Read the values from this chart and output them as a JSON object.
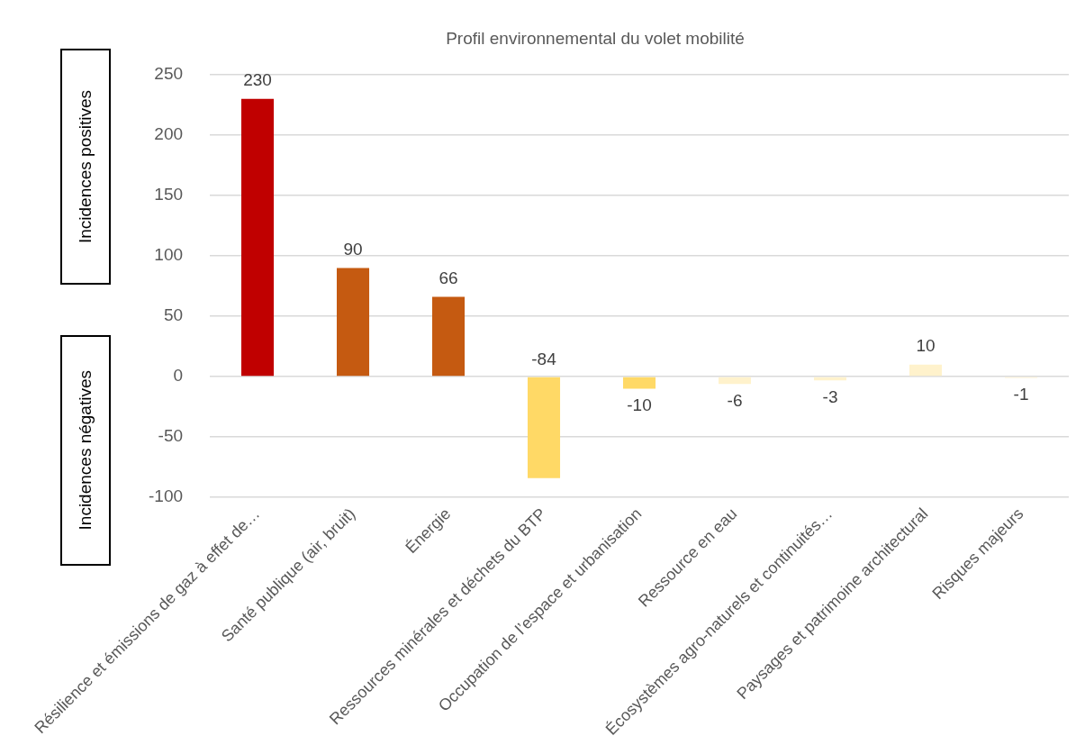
{
  "chart_data": {
    "type": "bar",
    "title": "Profil environnemental du volet mobilité",
    "categories": [
      "Résilience et émissions de gaz à effet de…",
      "Santé publique (air, bruit)",
      "Énergie",
      "Ressources minérales et déchets du BTP",
      "Occupation de l’espace et urbanisation",
      "Ressource en eau",
      "Écosystèmes agro-naturels et continuités…",
      "Paysages et patrimoine architectural",
      "Risques majeurs"
    ],
    "values": [
      230,
      90,
      66,
      -84,
      -10,
      -6,
      -3,
      10,
      -1
    ],
    "colors": [
      "#c00000",
      "#c55a11",
      "#c55a11",
      "#ffd966",
      "#ffd966",
      "#fff2cc",
      "#fff2cc",
      "#fff2cc",
      "#fff2cc"
    ],
    "ylim": [
      -100,
      250
    ],
    "yticks": [
      -100,
      -50,
      0,
      50,
      100,
      150,
      200,
      250
    ],
    "grid": "y",
    "legend": false,
    "data_labels": true,
    "annotations": [
      "Incidences positives",
      "Incidences négatives"
    ]
  }
}
